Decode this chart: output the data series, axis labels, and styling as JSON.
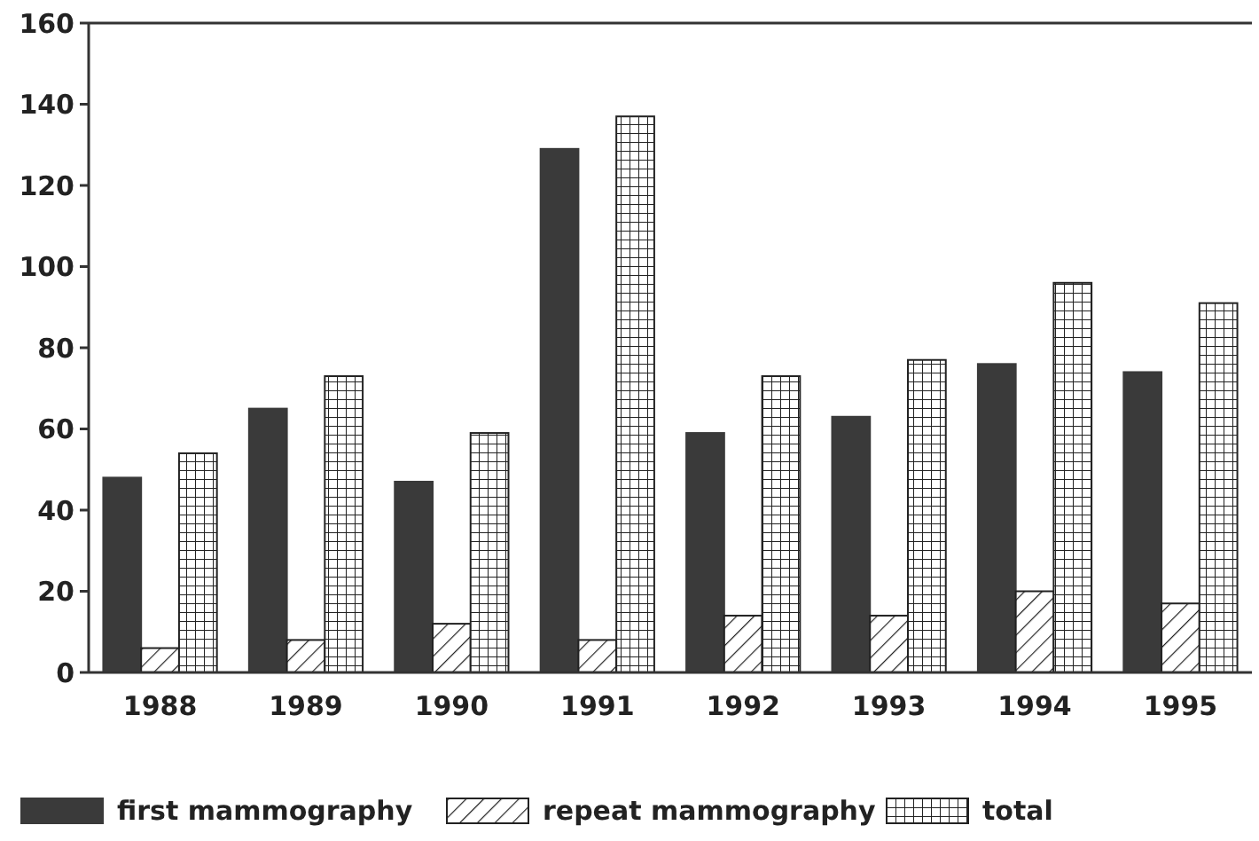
{
  "chart_data": {
    "type": "bar",
    "categories": [
      "1988",
      "1989",
      "1990",
      "1991",
      "1992",
      "1993",
      "1994",
      "1995"
    ],
    "series": [
      {
        "name": "first mammography",
        "color": "#3a3a3a",
        "values": [
          48,
          65,
          47,
          129,
          59,
          63,
          76,
          74
        ]
      },
      {
        "name": "repeat mammography",
        "color": "#222222",
        "values": [
          6,
          8,
          12,
          8,
          14,
          14,
          20,
          17
        ]
      },
      {
        "name": "total",
        "color": "#222222",
        "values": [
          54,
          73,
          59,
          137,
          73,
          77,
          96,
          91
        ]
      }
    ],
    "ylim": [
      0,
      160
    ],
    "yticks": [
      0,
      20,
      40,
      60,
      80,
      100,
      120,
      140,
      160
    ],
    "grid": false,
    "legend": "bottom"
  }
}
